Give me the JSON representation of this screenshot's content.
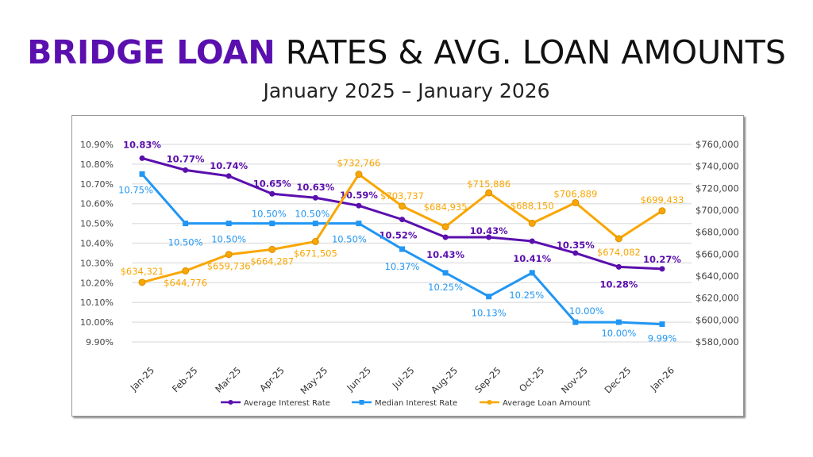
{
  "title": {
    "highlight": "BRIDGE LOAN",
    "rest": " RATES & AVG. LOAN AMOUNTS"
  },
  "subtitle": "January 2025 – January 2026",
  "chart_data": {
    "type": "line",
    "categories": [
      "Jan-25",
      "Feb-25",
      "Mar-25",
      "Apr-25",
      "May-25",
      "Jun-25",
      "Jul-25",
      "Aug-25",
      "Sep-25",
      "Oct-25",
      "Nov-25",
      "Dec-25",
      "Jan-26"
    ],
    "y_left": {
      "range": [
        9.9,
        10.9
      ],
      "ticks": [
        "9.90%",
        "10.00%",
        "10.10%",
        "10.20%",
        "10.30%",
        "10.40%",
        "10.50%",
        "10.60%",
        "10.70%",
        "10.80%",
        "10.90%"
      ]
    },
    "y_right": {
      "range": [
        580000,
        760000
      ],
      "ticks": [
        "$580,000",
        "$600,000",
        "$620,000",
        "$640,000",
        "$660,000",
        "$680,000",
        "$700,000",
        "$720,000",
        "$740,000",
        "$760,000"
      ]
    },
    "grid": true,
    "legend_position": "bottom",
    "series": [
      {
        "name": "Average Interest Rate",
        "axis": "left",
        "color": "#5a0fae",
        "marker": "circle",
        "values": [
          10.83,
          10.77,
          10.74,
          10.65,
          10.63,
          10.59,
          10.52,
          10.43,
          10.43,
          10.41,
          10.35,
          10.28,
          10.27
        ],
        "labels": [
          "10.83%",
          "10.77%",
          "10.74%",
          "10.65%",
          "10.63%",
          "10.59%",
          "10.52%",
          "10.43%",
          "10.43%",
          "10.41%",
          "10.35%",
          "10.28%",
          "10.27%"
        ]
      },
      {
        "name": "Median Interest Rate",
        "axis": "left",
        "color": "#2196f3",
        "marker": "square",
        "values": [
          10.75,
          10.5,
          10.5,
          10.5,
          10.5,
          10.5,
          10.37,
          10.25,
          10.13,
          10.25,
          10.0,
          10.0,
          9.99
        ],
        "labels": [
          "10.75%",
          "10.50%",
          "10.50%",
          "10.50%",
          "10.50%",
          "10.50%",
          "10.37%",
          "10.25%",
          "10.13%",
          "10.25%",
          "10.00%",
          "10.00%",
          "9.99%"
        ]
      },
      {
        "name": "Average Loan Amount",
        "axis": "right",
        "color": "#f9a602",
        "marker": "circle",
        "values": [
          634321,
          644776,
          659736,
          664287,
          671505,
          732766,
          703737,
          684935,
          715886,
          688150,
          706889,
          674082,
          699433
        ],
        "labels": [
          "$634,321",
          "$644,776",
          "$659,736",
          "$664,287",
          "$671,505",
          "$732,766",
          "$703,737",
          "$684,935",
          "$715,886",
          "$688,150",
          "$706,889",
          "$674,082",
          "$699,433"
        ]
      }
    ]
  }
}
